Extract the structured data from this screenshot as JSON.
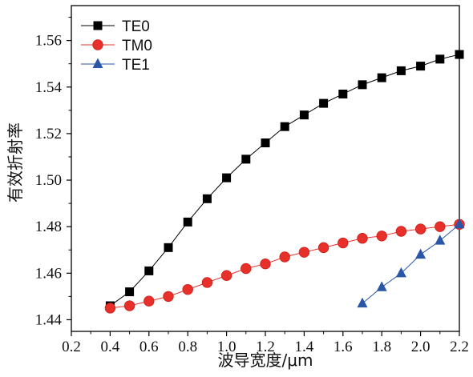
{
  "chart_data": {
    "type": "line",
    "xlabel": "波导宽度/μm",
    "ylabel": "有效折射率",
    "xlim": [
      0.2,
      2.2
    ],
    "ylim": [
      1.435,
      1.575
    ],
    "x_ticks": [
      "0.2",
      "0.4",
      "0.6",
      "0.8",
      "1.0",
      "1.2",
      "1.4",
      "1.6",
      "1.8",
      "2.0",
      "2.2"
    ],
    "y_ticks": [
      "1.44",
      "1.46",
      "1.48",
      "1.50",
      "1.52",
      "1.54",
      "1.56"
    ],
    "grid": false,
    "legend_position": "top-left",
    "series": [
      {
        "name": "TE0",
        "marker": "square",
        "color": "#000000",
        "line_color": "#000000",
        "x": [
          0.4,
          0.5,
          0.6,
          0.7,
          0.8,
          0.9,
          1.0,
          1.1,
          1.2,
          1.3,
          1.4,
          1.5,
          1.6,
          1.7,
          1.8,
          1.9,
          2.0,
          2.1,
          2.2
        ],
        "y": [
          1.446,
          1.452,
          1.461,
          1.471,
          1.482,
          1.492,
          1.501,
          1.509,
          1.516,
          1.523,
          1.528,
          1.533,
          1.537,
          1.541,
          1.544,
          1.547,
          1.549,
          1.552,
          1.554
        ]
      },
      {
        "name": "TM0",
        "marker": "circle",
        "color": "#e8302b",
        "line_color": "#e8302b",
        "x": [
          0.4,
          0.5,
          0.6,
          0.7,
          0.8,
          0.9,
          1.0,
          1.1,
          1.2,
          1.3,
          1.4,
          1.5,
          1.6,
          1.7,
          1.8,
          1.9,
          2.0,
          2.1,
          2.2
        ],
        "y": [
          1.445,
          1.446,
          1.448,
          1.45,
          1.453,
          1.456,
          1.459,
          1.462,
          1.464,
          1.467,
          1.469,
          1.471,
          1.473,
          1.475,
          1.476,
          1.478,
          1.479,
          1.48,
          1.481
        ]
      },
      {
        "name": "TE1",
        "marker": "triangle",
        "color": "#2a56a8",
        "line_color": "#2a56a8",
        "x": [
          1.7,
          1.8,
          1.9,
          2.0,
          2.1,
          2.2
        ],
        "y": [
          1.447,
          1.454,
          1.46,
          1.468,
          1.474,
          1.481
        ]
      }
    ]
  }
}
